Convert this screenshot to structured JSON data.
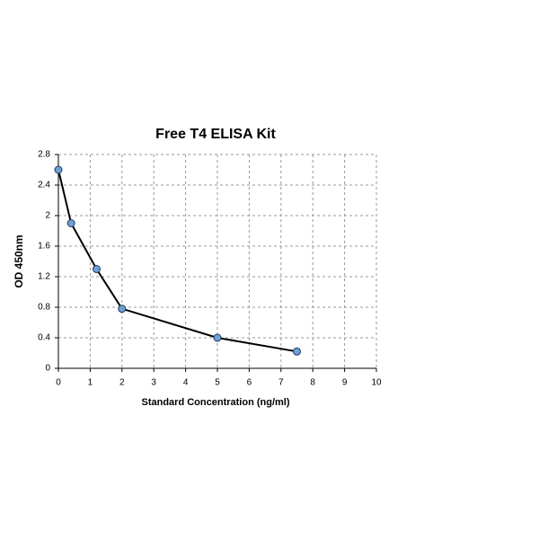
{
  "chart_data": {
    "type": "line",
    "title": "Free T4 ELISA Kit",
    "x_label": "Standard Concentration (ng/ml)",
    "y_label": "OD 450nm",
    "x": [
      0,
      0.4,
      1.2,
      2,
      5,
      7.5
    ],
    "values": [
      2.6,
      1.9,
      1.3,
      0.78,
      0.4,
      0.22
    ],
    "color": "#000000",
    "marker_color": "#6f9fd6",
    "xlim": [
      0,
      10
    ],
    "xticks": [
      0,
      1,
      2,
      3,
      4,
      5,
      6,
      7,
      8,
      9,
      10
    ],
    "ylim": [
      0,
      2.8
    ],
    "yticks": [
      0,
      0.4,
      0.8,
      1.2,
      1.6,
      2,
      2.4,
      2.8
    ],
    "grid": true
  }
}
